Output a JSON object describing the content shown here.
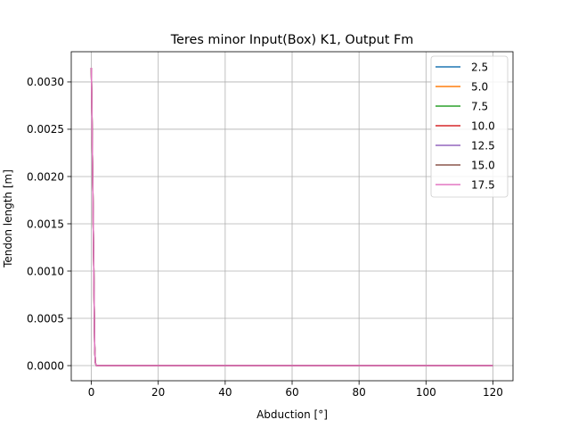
{
  "chart_data": {
    "type": "line",
    "title": "Teres minor Input(Box) K1, Output Fm",
    "xlabel": "Abduction [°]",
    "ylabel": "Tendon length [m]",
    "xlim": [
      -6,
      126
    ],
    "ylim": [
      -0.00016,
      0.00332
    ],
    "xticks": [
      0,
      20,
      40,
      60,
      80,
      100,
      120
    ],
    "xtick_labels": [
      "0",
      "20",
      "40",
      "60",
      "80",
      "100",
      "120"
    ],
    "yticks": [
      0,
      0.0005,
      0.001,
      0.0015,
      0.002,
      0.0025,
      0.003
    ],
    "ytick_labels": [
      "0.0000",
      "0.0005",
      "0.0010",
      "0.0015",
      "0.0020",
      "0.0025",
      "0.0030"
    ],
    "grid": true,
    "legend_position": "top-right",
    "x": [
      0,
      0.1,
      0.2,
      0.3,
      0.4,
      0.5,
      0.6,
      0.7,
      0.8,
      0.9,
      1.0,
      1.2,
      1.5,
      2,
      5,
      10,
      20,
      40,
      60,
      80,
      100,
      120
    ],
    "series": [
      {
        "name": "2.5",
        "color": "#1f77b4",
        "values": [
          0.00315,
          0.0029,
          0.0026,
          0.0023,
          0.002,
          0.0017,
          0.0014,
          0.0011,
          0.0008,
          0.0005,
          0.0002,
          3e-05,
          0,
          0,
          0,
          0,
          0,
          0,
          0,
          0,
          0,
          0
        ]
      },
      {
        "name": "5.0",
        "color": "#ff7f0e",
        "values": [
          0.00315,
          0.0029,
          0.0026,
          0.0023,
          0.002,
          0.0017,
          0.0014,
          0.0011,
          0.0008,
          0.0005,
          0.0002,
          3e-05,
          0,
          0,
          0,
          0,
          0,
          0,
          0,
          0,
          0,
          0
        ]
      },
      {
        "name": "7.5",
        "color": "#2ca02c",
        "values": [
          0.00315,
          0.0029,
          0.0026,
          0.0023,
          0.002,
          0.0017,
          0.0014,
          0.0011,
          0.0008,
          0.0005,
          0.0002,
          3e-05,
          0,
          0,
          0,
          0,
          0,
          0,
          0,
          0,
          0,
          0
        ]
      },
      {
        "name": "10.0",
        "color": "#d62728",
        "values": [
          0.00315,
          0.0029,
          0.0026,
          0.0023,
          0.002,
          0.0017,
          0.0014,
          0.0011,
          0.0008,
          0.0005,
          0.0002,
          3e-05,
          0,
          0,
          0,
          0,
          0,
          0,
          0,
          0,
          0,
          0
        ]
      },
      {
        "name": "12.5",
        "color": "#9467bd",
        "values": [
          0.00315,
          0.0029,
          0.0026,
          0.0023,
          0.002,
          0.0017,
          0.0014,
          0.0011,
          0.0008,
          0.0005,
          0.0002,
          3e-05,
          0,
          0,
          0,
          0,
          0,
          0,
          0,
          0,
          0,
          0
        ]
      },
      {
        "name": "15.0",
        "color": "#8c564b",
        "values": [
          0.00315,
          0.0029,
          0.0026,
          0.0023,
          0.002,
          0.0017,
          0.0014,
          0.0011,
          0.0008,
          0.0005,
          0.0002,
          3e-05,
          0,
          0,
          0,
          0,
          0,
          0,
          0,
          0,
          0,
          0
        ]
      },
      {
        "name": "17.5",
        "color": "#e377c2",
        "values": [
          0.00315,
          0.0029,
          0.0026,
          0.0023,
          0.002,
          0.0017,
          0.0014,
          0.0011,
          0.0008,
          0.0005,
          0.0002,
          3e-05,
          0,
          0,
          0,
          0,
          0,
          0,
          0,
          0,
          0,
          0
        ]
      }
    ]
  }
}
